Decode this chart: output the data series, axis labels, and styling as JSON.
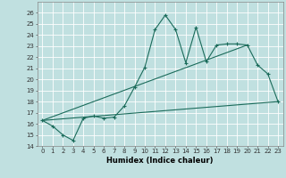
{
  "title": "",
  "xlabel": "Humidex (Indice chaleur)",
  "bg_color": "#c0e0e0",
  "line_color": "#1a6b5a",
  "xlim": [
    -0.5,
    23.5
  ],
  "ylim": [
    14,
    27
  ],
  "xticks": [
    0,
    1,
    2,
    3,
    4,
    5,
    6,
    7,
    8,
    9,
    10,
    11,
    12,
    13,
    14,
    15,
    16,
    17,
    18,
    19,
    20,
    21,
    22,
    23
  ],
  "yticks": [
    14,
    15,
    16,
    17,
    18,
    19,
    20,
    21,
    22,
    23,
    24,
    25,
    26
  ],
  "series1_x": [
    0,
    1,
    2,
    3,
    4,
    5,
    6,
    7,
    8,
    9,
    10,
    11,
    12,
    13,
    14,
    15,
    16,
    17,
    18,
    19,
    20,
    21,
    22,
    23
  ],
  "series1_y": [
    16.3,
    15.8,
    15.0,
    14.5,
    16.5,
    16.7,
    16.5,
    16.6,
    17.6,
    19.3,
    21.1,
    24.5,
    25.8,
    24.5,
    21.5,
    24.7,
    21.6,
    23.1,
    23.2,
    23.2,
    23.1,
    21.3,
    20.5,
    18.0
  ],
  "series2_x": [
    0,
    23
  ],
  "series2_y": [
    16.3,
    18.0
  ],
  "series3_x": [
    0,
    20
  ],
  "series3_y": [
    16.3,
    23.1
  ],
  "grid_color": "#ffffff",
  "xlabel_fontsize": 6,
  "tick_fontsize": 5,
  "marker": "+"
}
